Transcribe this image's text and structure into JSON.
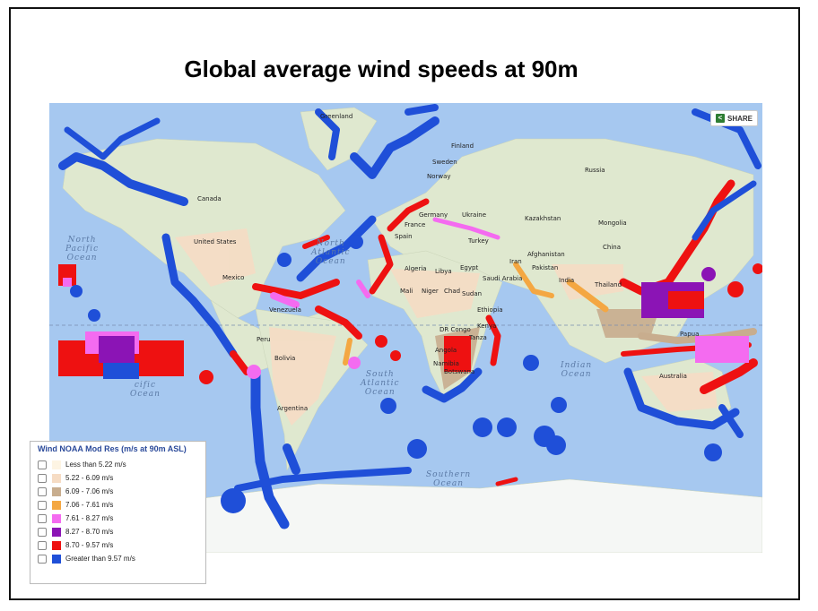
{
  "title": "Global average wind speeds at 90m",
  "share_label": "SHARE",
  "share_icon": "share-icon",
  "legend": {
    "title": "Wind NOAA Mod Res (m/s at 90m ASL)",
    "items": [
      {
        "label": "Less than 5.22 m/s",
        "color": "#fdf4e3"
      },
      {
        "label": "5.22 - 6.09 m/s",
        "color": "#f6dcc4"
      },
      {
        "label": "6.09 - 7.06 m/s",
        "color": "#c8ad8e"
      },
      {
        "label": "7.06 - 7.61 m/s",
        "color": "#f4a742"
      },
      {
        "label": "7.61 - 8.27 m/s",
        "color": "#f46bf0"
      },
      {
        "label": "8.27 - 8.70 m/s",
        "color": "#8b14b5"
      },
      {
        "label": "8.70 - 9.57 m/s",
        "color": "#ee1111"
      },
      {
        "label": "Greater than 9.57 m/s",
        "color": "#1f4fd8"
      }
    ]
  },
  "countries": {
    "greenland": "Greenland",
    "canada": "Canada",
    "united_states": "United States",
    "mexico": "Mexico",
    "venezuela": "Venezuela",
    "peru": "Peru",
    "bolivia": "Bolivia",
    "argentina": "Argentina",
    "finland": "Finland",
    "sweden": "Sweden",
    "norway": "Norway",
    "germany": "Germany",
    "ukraine": "Ukraine",
    "france": "France",
    "spain": "Spain",
    "turkey": "Turkey",
    "russia": "Russia",
    "kazakhstan": "Kazakhstan",
    "mongolia": "Mongolia",
    "china": "China",
    "afghanistan": "Afghanistan",
    "iran": "Iran",
    "pakistan": "Pakistan",
    "india": "India",
    "thailand": "Thailand",
    "papua": "Papua",
    "australia": "Australia",
    "algeria": "Algeria",
    "libya": "Libya",
    "egypt": "Egypt",
    "saudi_arabia": "Saudi Arabia",
    "mali": "Mali",
    "niger": "Niger",
    "chad": "Chad",
    "sudan": "Sudan",
    "ethiopia": "Ethiopia",
    "kenya": "Kenya",
    "dr_congo": "DR Congo",
    "tanzania": "Tanza",
    "angola": "Angola",
    "namibia": "Namibia",
    "botswana": "Botswana"
  },
  "oceans": {
    "north_pacific": [
      "North",
      "Pacific",
      "Ocean"
    ],
    "south_pacific": [
      "cific",
      "Ocean"
    ],
    "north_atlantic": [
      "North",
      "Atlantic",
      "Ocean"
    ],
    "south_atlantic": [
      "South",
      "Atlantic",
      "Ocean"
    ],
    "indian": [
      "Indian",
      "Ocean"
    ],
    "southern": [
      "Southern",
      "Ocean"
    ]
  }
}
